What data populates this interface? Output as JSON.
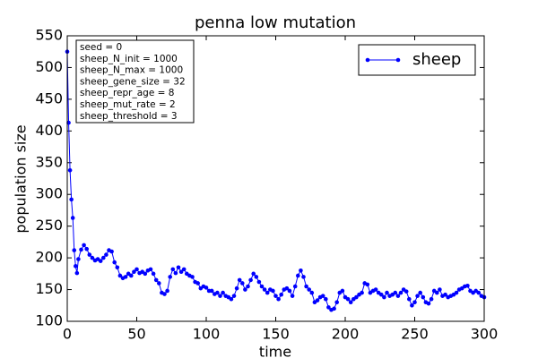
{
  "chart_data": {
    "type": "line",
    "title": "penna low mutation",
    "xlabel": "time",
    "ylabel": "population size",
    "xlim": [
      0,
      300
    ],
    "xticks": [
      0,
      50,
      100,
      150,
      200,
      250,
      300
    ],
    "ylim": [
      100,
      550
    ],
    "yticks": [
      100,
      150,
      200,
      250,
      300,
      350,
      400,
      450,
      500,
      550
    ],
    "grid": false,
    "legend": "upper right",
    "annotation": [
      "seed = 0",
      "sheep_N_init = 1000",
      "sheep_N_max = 1000",
      "sheep_gene_size = 32",
      "sheep_repr_age = 8",
      "sheep_mut_rate = 2",
      "sheep_threshold = 3"
    ],
    "x": [
      0,
      1,
      2,
      3,
      4,
      5,
      6,
      7,
      8,
      10,
      12,
      14,
      16,
      18,
      20,
      22,
      24,
      26,
      28,
      30,
      32,
      34,
      36,
      38,
      40,
      42,
      44,
      46,
      48,
      50,
      52,
      54,
      56,
      58,
      60,
      62,
      64,
      66,
      68,
      70,
      72,
      74,
      76,
      78,
      80,
      82,
      84,
      86,
      88,
      90,
      92,
      94,
      96,
      98,
      100,
      102,
      104,
      106,
      108,
      110,
      112,
      114,
      116,
      118,
      120,
      122,
      124,
      126,
      128,
      130,
      132,
      134,
      136,
      138,
      140,
      142,
      144,
      146,
      148,
      150,
      152,
      154,
      156,
      158,
      160,
      162,
      164,
      166,
      168,
      170,
      172,
      174,
      176,
      178,
      180,
      182,
      184,
      186,
      188,
      190,
      192,
      194,
      196,
      198,
      200,
      202,
      204,
      206,
      208,
      210,
      212,
      214,
      216,
      218,
      220,
      222,
      224,
      226,
      228,
      230,
      232,
      234,
      236,
      238,
      240,
      242,
      244,
      246,
      248,
      250,
      252,
      254,
      256,
      258,
      260,
      262,
      264,
      266,
      268,
      270,
      272,
      274,
      276,
      278,
      280,
      282,
      284,
      286,
      288,
      290,
      292,
      294,
      296,
      298,
      300
    ],
    "series": [
      {
        "name": "sheep",
        "color": "#0000ff",
        "values": [
          525,
          413,
          338,
          292,
          263,
          212,
          187,
          176,
          198,
          213,
          220,
          214,
          205,
          200,
          196,
          198,
          195,
          200,
          205,
          212,
          210,
          193,
          185,
          172,
          168,
          170,
          175,
          172,
          178,
          182,
          176,
          178,
          175,
          180,
          182,
          175,
          165,
          160,
          145,
          143,
          148,
          170,
          182,
          176,
          185,
          178,
          182,
          175,
          172,
          170,
          162,
          160,
          152,
          155,
          153,
          148,
          148,
          143,
          145,
          140,
          145,
          140,
          138,
          135,
          140,
          152,
          165,
          160,
          150,
          155,
          165,
          175,
          170,
          162,
          155,
          150,
          145,
          150,
          148,
          140,
          135,
          142,
          150,
          152,
          148,
          140,
          155,
          172,
          180,
          170,
          155,
          150,
          145,
          130,
          133,
          138,
          140,
          135,
          122,
          118,
          120,
          130,
          145,
          148,
          138,
          135,
          130,
          135,
          138,
          142,
          145,
          160,
          158,
          145,
          148,
          150,
          145,
          142,
          138,
          145,
          140,
          142,
          145,
          140,
          145,
          150,
          147,
          135,
          125,
          130,
          140,
          145,
          138,
          130,
          128,
          135,
          148,
          145,
          150,
          140,
          142,
          138,
          140,
          142,
          145,
          150,
          152,
          155,
          156,
          148,
          145,
          148,
          145,
          140,
          138
        ]
      }
    ]
  }
}
